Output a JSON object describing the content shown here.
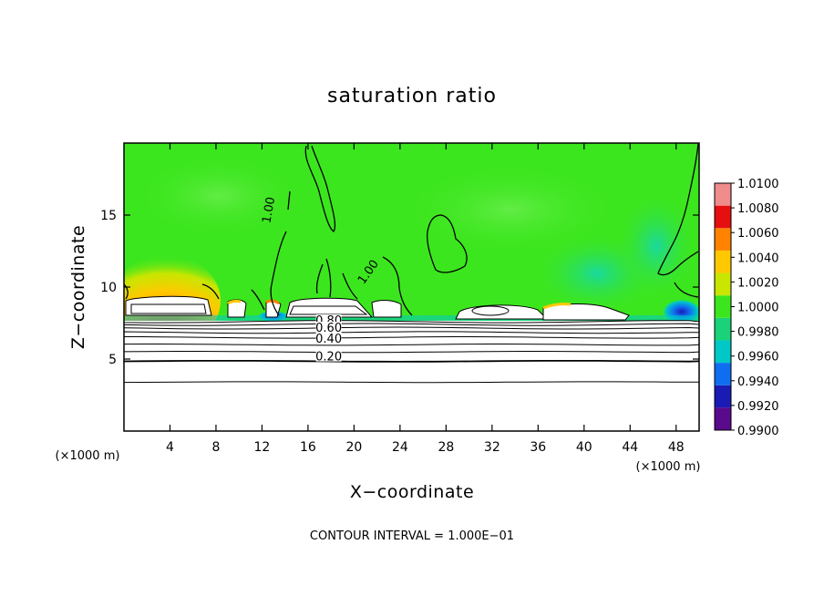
{
  "chart_data": {
    "type": "heatmap",
    "title": "saturation ratio",
    "xlabel": "X−coordinate",
    "ylabel": "Z−coordinate",
    "x_unit_label": "(×1000 m)",
    "y_unit_label": "(×1000 m)",
    "xlim": [
      0,
      50
    ],
    "ylim": [
      0,
      20
    ],
    "x_ticks": [
      4,
      8,
      12,
      16,
      20,
      24,
      28,
      32,
      36,
      40,
      44,
      48
    ],
    "y_ticks": [
      5,
      10,
      15
    ],
    "colorbar": {
      "levels": [
        "0.9900",
        "0.9920",
        "0.9940",
        "0.9960",
        "0.9980",
        "1.0000",
        "1.0020",
        "1.0040",
        "1.0060",
        "1.0080",
        "1.0100"
      ],
      "colors": [
        "#5a0a8c",
        "#1a1ab4",
        "#0f6ef0",
        "#00c8c8",
        "#19d27a",
        "#3ce61e",
        "#c8e600",
        "#ffc800",
        "#ff8200",
        "#e60f0f",
        "#f08c8c"
      ],
      "placement": "right"
    },
    "contour_labels": [
      {
        "text": "1.00",
        "x": 12.9,
        "z": 15.3
      },
      {
        "text": "1.00",
        "x": 21.5,
        "z": 10.9
      },
      {
        "text": "0.80",
        "x": 17.8,
        "z": 7.4
      },
      {
        "text": "0.60",
        "x": 17.8,
        "z": 6.9
      },
      {
        "text": "0.40",
        "x": 17.8,
        "z": 6.15
      },
      {
        "text": "0.20",
        "x": 17.8,
        "z": 4.9
      }
    ],
    "subsaturated_contours_z": [
      3.4,
      4.85,
      5.5,
      6.0,
      6.5,
      6.85,
      7.15,
      7.4,
      7.6
    ],
    "footnote": "CONTOUR INTERVAL = 1.000E−01"
  }
}
